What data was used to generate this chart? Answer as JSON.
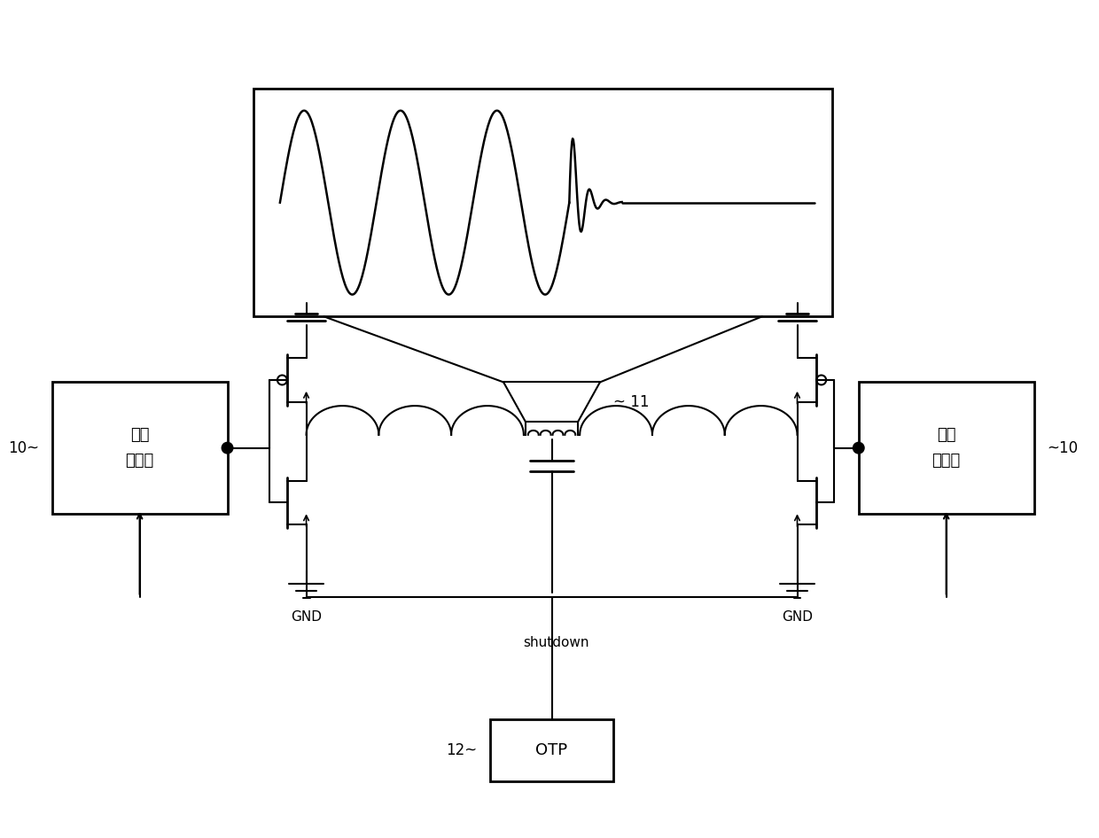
{
  "bg_color": "#ffffff",
  "line_color": "#000000",
  "fig_width": 12.4,
  "fig_height": 9.46,
  "gate_driver_text_1": "闸极",
  "gate_driver_text_2": "驱动器",
  "gnd_text": "GND",
  "shutdown_text": "shutdown",
  "otp_text": "OTP",
  "label_10": "10",
  "label_11": "11",
  "label_12": "12"
}
